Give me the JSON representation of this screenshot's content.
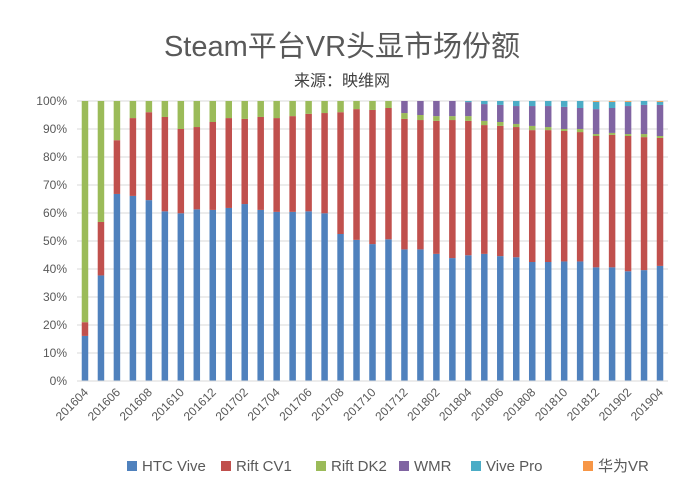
{
  "chart_data": {
    "type": "bar",
    "stacked": "percent",
    "title": "Steam平台VR头显市场份额",
    "subtitle": "来源：映维网",
    "xlabel": "",
    "ylabel": "",
    "ylim": [
      0,
      100
    ],
    "yticks": [
      "0%",
      "10%",
      "20%",
      "30%",
      "40%",
      "50%",
      "60%",
      "70%",
      "80%",
      "90%",
      "100%"
    ],
    "grid": true,
    "legend_position": "bottom",
    "categories": [
      "201604",
      "201605",
      "201606",
      "201607",
      "201608",
      "201609",
      "201610",
      "201611",
      "201612",
      "201701",
      "201702",
      "201703",
      "201704",
      "201705",
      "201706",
      "201707",
      "201708",
      "201709",
      "201710",
      "201711",
      "201712",
      "201801",
      "201802",
      "201803",
      "201804",
      "201805",
      "201806",
      "201807",
      "201808",
      "201809",
      "201810",
      "201811",
      "201812",
      "201901",
      "201902",
      "201903",
      "201904"
    ],
    "xtick_labels": [
      "201604",
      "201606",
      "201608",
      "201610",
      "201612",
      "201702",
      "201704",
      "201706",
      "201708",
      "201710",
      "201712",
      "201802",
      "201804",
      "201806",
      "201808",
      "201810",
      "201812",
      "201902",
      "201904"
    ],
    "series": [
      {
        "name": "HTC Vive",
        "color": "#4f81bd",
        "values": [
          16.1,
          37.7,
          66.8,
          66.1,
          64.6,
          60.6,
          59.9,
          61.3,
          61.1,
          61.8,
          63.2,
          61.1,
          60.4,
          60.4,
          60.6,
          59.9,
          52.5,
          50.4,
          48.9,
          50.6,
          47.0,
          47.0,
          45.4,
          43.9,
          44.9,
          45.4,
          44.6,
          44.2,
          42.5,
          42.5,
          42.7,
          42.7,
          40.6,
          40.6,
          39.2,
          39.6,
          41.1
        ]
      },
      {
        "name": "Rift CV1",
        "color": "#c0504d",
        "values": [
          4.9,
          19.1,
          19.2,
          27.8,
          31.4,
          33.7,
          30.1,
          29.4,
          31.4,
          32.1,
          30.4,
          33.2,
          33.5,
          34.2,
          34.8,
          35.8,
          43.5,
          46.7,
          47.9,
          46.9,
          46.6,
          46.2,
          47.5,
          49.3,
          48.0,
          46.0,
          46.5,
          46.5,
          47.1,
          47.1,
          46.6,
          46.2,
          46.9,
          47.3,
          48.3,
          47.5,
          45.7
        ]
      },
      {
        "name": "Rift DK2",
        "color": "#9bbb59",
        "values": [
          79.0,
          43.2,
          14.0,
          6.1,
          4.0,
          5.7,
          10.0,
          9.3,
          7.5,
          6.1,
          6.4,
          5.7,
          6.1,
          5.4,
          4.6,
          4.3,
          4.0,
          2.9,
          3.2,
          2.5,
          2.1,
          1.8,
          1.7,
          1.4,
          1.7,
          1.5,
          1.4,
          1.1,
          1.5,
          1.1,
          0.7,
          1.1,
          0.7,
          0.7,
          0.7,
          1.1,
          0.7
        ]
      },
      {
        "name": "WMR",
        "color": "#8064a2",
        "values": [
          0,
          0,
          0,
          0,
          0,
          0,
          0,
          0,
          0,
          0,
          0,
          0,
          0,
          0,
          0,
          0,
          0,
          0,
          0,
          0,
          4.3,
          5.0,
          5.4,
          5.4,
          5.0,
          6.0,
          6.1,
          6.4,
          7.1,
          7.5,
          7.9,
          7.5,
          8.9,
          8.9,
          10.0,
          10.4,
          11.1
        ]
      },
      {
        "name": "Vive Pro",
        "color": "#4bacc6",
        "values": [
          0,
          0,
          0,
          0,
          0,
          0,
          0,
          0,
          0,
          0,
          0,
          0,
          0,
          0,
          0,
          0,
          0,
          0,
          0,
          0,
          0,
          0,
          0,
          0,
          0.4,
          1.1,
          1.4,
          1.8,
          1.8,
          1.8,
          2.1,
          2.5,
          2.6,
          2.2,
          1.5,
          1.4,
          1.1
        ]
      },
      {
        "name": "华为VR",
        "color": "#f79646",
        "values": [
          0,
          0,
          0,
          0,
          0,
          0,
          0,
          0,
          0,
          0,
          0,
          0,
          0,
          0,
          0,
          0,
          0,
          0,
          0,
          0,
          0,
          0,
          0,
          0,
          0,
          0,
          0,
          0,
          0,
          0,
          0,
          0,
          0.3,
          0.3,
          0.3,
          0,
          0.3
        ]
      }
    ]
  }
}
